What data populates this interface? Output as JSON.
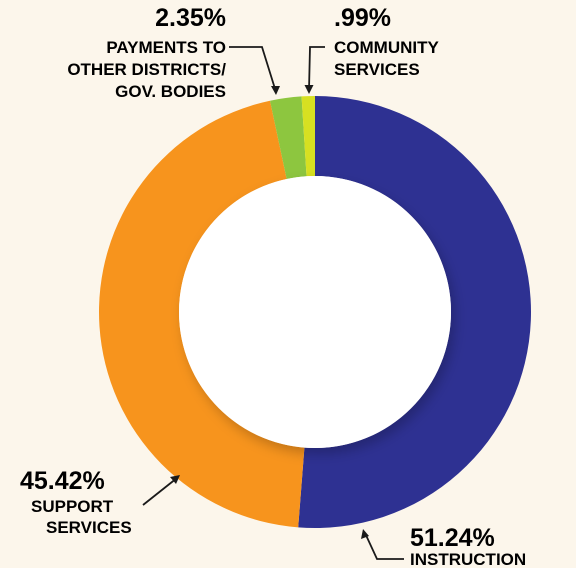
{
  "chart_data": {
    "type": "pie",
    "variant": "donut",
    "slices": [
      {
        "label": "INSTRUCTION",
        "percent_label": "51.24%",
        "value": 51.24,
        "color": "#2e3192"
      },
      {
        "label": "SUPPORT SERVICES",
        "percent_label": "45.42%",
        "value": 45.42,
        "color": "#f7941d"
      },
      {
        "label": "PAYMENTS TO OTHER DISTRICTS/ GOV. BODIES",
        "percent_label": "2.35%",
        "value": 2.35,
        "color": "#8dc63f"
      },
      {
        "label": "COMMUNITY SERVICES",
        "percent_label": ".99%",
        "value": 0.99,
        "color": "#d7e021"
      }
    ]
  },
  "labels": {
    "instruction": {
      "pct": "51.24%",
      "lines": [
        "INSTRUCTION"
      ]
    },
    "support": {
      "pct": "45.42%",
      "lines": [
        "SUPPORT",
        "SERVICES"
      ]
    },
    "payments": {
      "pct": "2.35%",
      "lines": [
        "PAYMENTS TO",
        "OTHER DISTRICTS/",
        "GOV. BODIES"
      ]
    },
    "community": {
      "pct": ".99%",
      "lines": [
        "COMMUNITY",
        "SERVICES"
      ]
    }
  }
}
